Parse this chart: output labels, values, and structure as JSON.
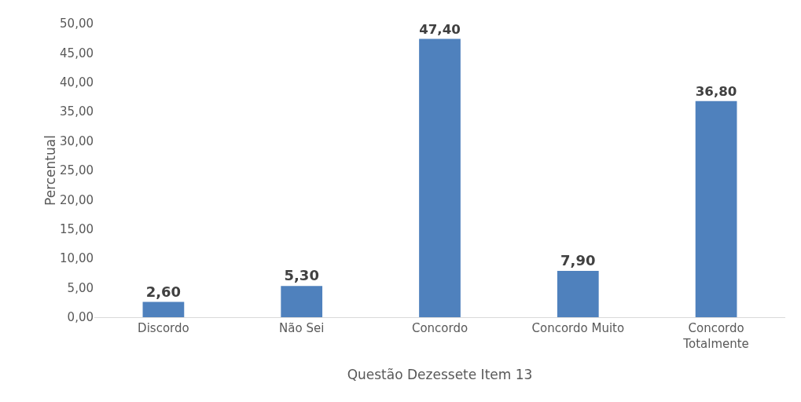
{
  "chart_data": {
    "type": "bar",
    "xlabel": "Questão Dezessete Item 13",
    "ylabel": "Percentual",
    "categories": [
      "Discordo",
      "Não Sei",
      "Concordo",
      "Concordo Muito",
      "Concordo Totalmente"
    ],
    "values": [
      2.6,
      5.3,
      47.4,
      7.9,
      36.8
    ],
    "value_labels": [
      "2,60",
      "5,30",
      "47,40",
      "7,90",
      "36,80"
    ],
    "color": "#4f81bd",
    "ylim": [
      0,
      50
    ],
    "yticks": [
      {
        "value": 0,
        "label": "0,00"
      },
      {
        "value": 5,
        "label": "5,00"
      },
      {
        "value": 10,
        "label": "10,00"
      },
      {
        "value": 15,
        "label": "15,00"
      },
      {
        "value": 20,
        "label": "20,00"
      },
      {
        "value": 25,
        "label": "25,00"
      },
      {
        "value": 30,
        "label": "30,00"
      },
      {
        "value": 35,
        "label": "35,00"
      },
      {
        "value": 40,
        "label": "40,00"
      },
      {
        "value": 45,
        "label": "45,00"
      },
      {
        "value": 50,
        "label": "50,00"
      }
    ],
    "grid": false
  }
}
